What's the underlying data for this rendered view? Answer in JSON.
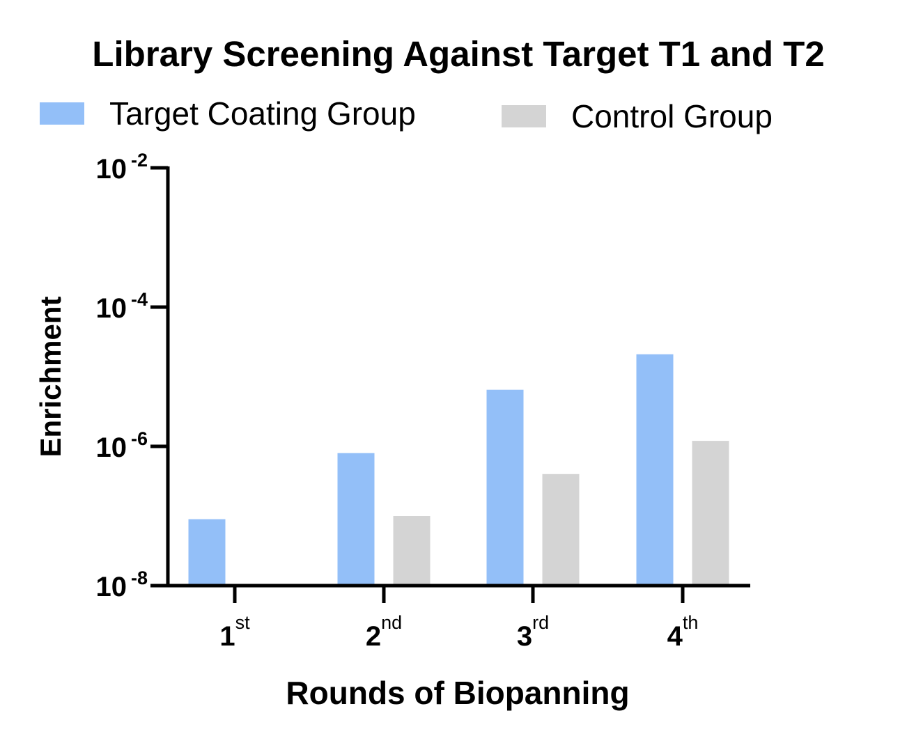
{
  "chart_data": {
    "type": "bar",
    "title": "Library Screening Against Target T1 and T2",
    "xlabel": "Rounds of Biopanning",
    "ylabel": "Enrichment",
    "yscale": "log",
    "ylim": [
      1e-08,
      0.01
    ],
    "yticks": [
      {
        "value": 0.01,
        "base": "10",
        "exp": "-2"
      },
      {
        "value": 0.0001,
        "base": "10",
        "exp": "-4"
      },
      {
        "value": 1e-06,
        "base": "10",
        "exp": "-6"
      },
      {
        "value": 1e-08,
        "base": "10",
        "exp": "-8"
      }
    ],
    "categories": [
      {
        "num": "1",
        "sup": "st"
      },
      {
        "num": "2",
        "sup": "nd"
      },
      {
        "num": "3",
        "sup": "rd"
      },
      {
        "num": "4",
        "sup": "th"
      }
    ],
    "series": [
      {
        "name": "Target Coating Group",
        "color": "#93bff8",
        "values": [
          9e-08,
          8e-07,
          6.5e-06,
          2.1e-05
        ]
      },
      {
        "name": "Control Group",
        "color": "#d4d4d4",
        "values": [
          null,
          1e-07,
          4e-07,
          1.2e-06
        ]
      }
    ],
    "grid": false,
    "legend": "top"
  }
}
